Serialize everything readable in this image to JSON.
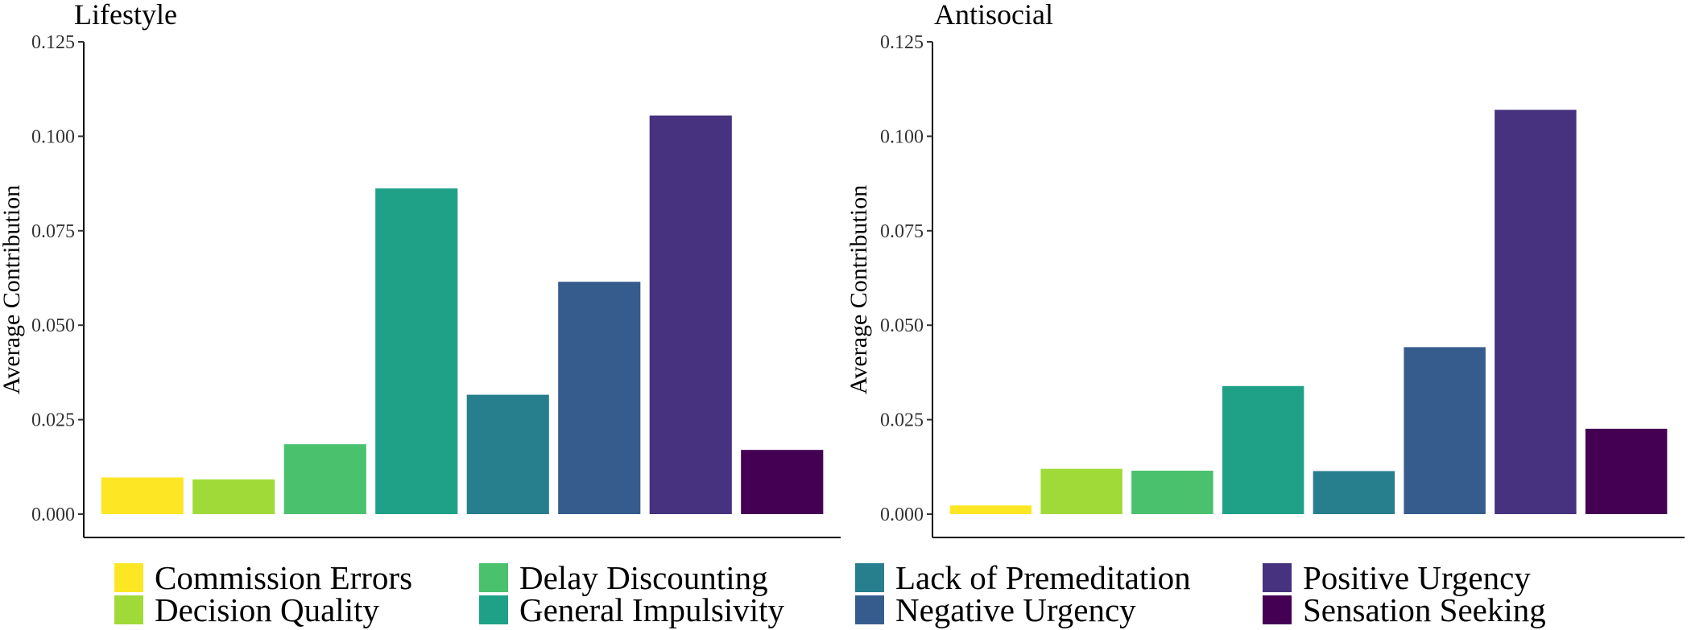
{
  "chart_data": [
    {
      "type": "bar",
      "title": "Lifestyle",
      "ylabel": "Average Contribution",
      "xlabel": "",
      "ylim": [
        0,
        0.125
      ],
      "yticks": [
        "0.000",
        "0.025",
        "0.050",
        "0.075",
        "0.100",
        "0.125"
      ],
      "grid": false,
      "categories": [
        "Commission Errors",
        "Decision Quality",
        "Delay Discounting",
        "General Impulsivity",
        "Lack of Premeditation",
        "Negative Urgency",
        "Positive Urgency",
        "Sensation Seeking"
      ],
      "values": [
        0.0097,
        0.0092,
        0.0185,
        0.0862,
        0.0316,
        0.0615,
        0.1055,
        0.017
      ]
    },
    {
      "type": "bar",
      "title": "Antisocial",
      "ylabel": "Average Contribution",
      "xlabel": "",
      "ylim": [
        0,
        0.125
      ],
      "yticks": [
        "0.000",
        "0.025",
        "0.050",
        "0.075",
        "0.100",
        "0.125"
      ],
      "grid": false,
      "categories": [
        "Commission Errors",
        "Decision Quality",
        "Delay Discounting",
        "General Impulsivity",
        "Lack of Premeditation",
        "Negative Urgency",
        "Positive Urgency",
        "Sensation Seeking"
      ],
      "values": [
        0.0023,
        0.012,
        0.0115,
        0.0339,
        0.0114,
        0.0442,
        0.107,
        0.0226
      ]
    }
  ],
  "legend": {
    "placement": "bottom",
    "items": [
      {
        "label": "Commission Errors",
        "color": "#FDE725"
      },
      {
        "label": "Decision Quality",
        "color": "#A0DA39"
      },
      {
        "label": "Delay Discounting",
        "color": "#4AC16D"
      },
      {
        "label": "General Impulsivity",
        "color": "#1FA187"
      },
      {
        "label": "Lack of Premeditation",
        "color": "#277F8E"
      },
      {
        "label": "Negative Urgency",
        "color": "#365C8D"
      },
      {
        "label": "Positive Urgency",
        "color": "#46327E"
      },
      {
        "label": "Sensation Seeking",
        "color": "#440154"
      }
    ]
  }
}
